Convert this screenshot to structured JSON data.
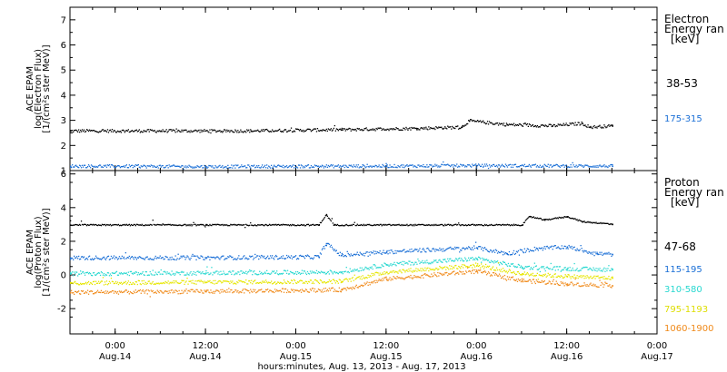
{
  "colors": {
    "frame": "#000000",
    "electron": [
      "#000000",
      "#1a6fd6"
    ],
    "proton": [
      "#000000",
      "#1a6fd6",
      "#28d8d0",
      "#e6e600",
      "#f08a1a"
    ]
  },
  "time_axis": {
    "xlabel": "hours:minutes, Aug. 13, 2013 - Aug. 17, 2013",
    "range": [
      "2013-08-13T18:00",
      "2013-08-17T00:00"
    ],
    "ticks": [
      {
        "t": "2013-08-14T00:00",
        "time": "0:00",
        "date": "Aug.14"
      },
      {
        "t": "2013-08-14T12:00",
        "time": "12:00",
        "date": "Aug.14"
      },
      {
        "t": "2013-08-15T00:00",
        "time": "0:00",
        "date": "Aug.15"
      },
      {
        "t": "2013-08-15T12:00",
        "time": "12:00",
        "date": "Aug.15"
      },
      {
        "t": "2013-08-16T00:00",
        "time": "0:00",
        "date": "Aug.16"
      },
      {
        "t": "2013-08-16T12:00",
        "time": "12:00",
        "date": "Aug.16"
      },
      {
        "t": "2013-08-17T00:00",
        "time": "0:00",
        "date": "Aug.17"
      }
    ]
  },
  "chart_data": [
    {
      "type": "scatter",
      "ylabel_lines": [
        "ACE EPAM",
        "log(Electron Flux)",
        "[1/(cm²s ster MeV)]"
      ],
      "ylim": [
        1,
        7.5
      ],
      "yticks": [
        1,
        2,
        3,
        4,
        5,
        6,
        7
      ],
      "legend": {
        "title_lines": [
          "Electron",
          "Energy ran",
          "[keV]"
        ]
      },
      "series": [
        {
          "name": "38-53",
          "points": [
            [
              "2013-08-13T18:00",
              2.6
            ],
            [
              "2013-08-14T06:00",
              2.6
            ],
            [
              "2013-08-14T18:00",
              2.6
            ],
            [
              "2013-08-15T06:00",
              2.65
            ],
            [
              "2013-08-15T16:00",
              2.7
            ],
            [
              "2013-08-15T22:00",
              2.75
            ],
            [
              "2013-08-15T23:00",
              3.0
            ],
            [
              "2013-08-16T04:00",
              2.85
            ],
            [
              "2013-08-16T10:00",
              2.8
            ],
            [
              "2013-08-16T14:00",
              2.9
            ],
            [
              "2013-08-16T15:00",
              2.75
            ],
            [
              "2013-08-16T18:00",
              2.8
            ]
          ]
        },
        {
          "name": "175-315",
          "points": [
            [
              "2013-08-13T18:00",
              1.2
            ],
            [
              "2013-08-14T12:00",
              1.18
            ],
            [
              "2013-08-15T12:00",
              1.2
            ],
            [
              "2013-08-16T00:00",
              1.22
            ],
            [
              "2013-08-16T18:00",
              1.2
            ]
          ]
        }
      ]
    },
    {
      "type": "scatter",
      "ylabel_lines": [
        "ACE EPAM",
        "log(Proton Flux)",
        "[1/(cm²s ster MeV)]"
      ],
      "ylim": [
        -3.5,
        6.2
      ],
      "yticks": [
        -2,
        0,
        2,
        4,
        6
      ],
      "legend": {
        "title_lines": [
          "Proton",
          "Energy ran",
          "[keV]"
        ]
      },
      "series": [
        {
          "name": "47-68",
          "points": [
            [
              "2013-08-13T18:00",
              3.0
            ],
            [
              "2013-08-14T12:00",
              3.0
            ],
            [
              "2013-08-15T03:00",
              3.0
            ],
            [
              "2013-08-15T04:00",
              3.6
            ],
            [
              "2013-08-15T05:00",
              3.0
            ],
            [
              "2013-08-16T06:00",
              3.0
            ],
            [
              "2013-08-16T07:00",
              3.5
            ],
            [
              "2013-08-16T09:00",
              3.3
            ],
            [
              "2013-08-16T12:00",
              3.5
            ],
            [
              "2013-08-16T14:00",
              3.2
            ],
            [
              "2013-08-16T18:00",
              3.05
            ]
          ]
        },
        {
          "name": "115-195",
          "points": [
            [
              "2013-08-13T18:00",
              1.05
            ],
            [
              "2013-08-14T12:00",
              1.05
            ],
            [
              "2013-08-15T03:00",
              1.1
            ],
            [
              "2013-08-15T04:00",
              1.9
            ],
            [
              "2013-08-15T06:00",
              1.2
            ],
            [
              "2013-08-15T12:00",
              1.4
            ],
            [
              "2013-08-16T00:00",
              1.65
            ],
            [
              "2013-08-16T04:00",
              1.3
            ],
            [
              "2013-08-16T08:00",
              1.6
            ],
            [
              "2013-08-16T12:00",
              1.7
            ],
            [
              "2013-08-16T16:00",
              1.3
            ],
            [
              "2013-08-16T18:00",
              1.25
            ]
          ]
        },
        {
          "name": "310-580",
          "points": [
            [
              "2013-08-13T18:00",
              0.1
            ],
            [
              "2013-08-14T12:00",
              0.15
            ],
            [
              "2013-08-15T06:00",
              0.2
            ],
            [
              "2013-08-15T12:00",
              0.65
            ],
            [
              "2013-08-16T00:00",
              1.0
            ],
            [
              "2013-08-16T06:00",
              0.5
            ],
            [
              "2013-08-16T12:00",
              0.4
            ],
            [
              "2013-08-16T18:00",
              0.35
            ]
          ]
        },
        {
          "name": "795-1193",
          "points": [
            [
              "2013-08-13T18:00",
              -0.45
            ],
            [
              "2013-08-14T12:00",
              -0.4
            ],
            [
              "2013-08-15T06:00",
              -0.35
            ],
            [
              "2013-08-15T12:00",
              0.2
            ],
            [
              "2013-08-16T00:00",
              0.6
            ],
            [
              "2013-08-16T06:00",
              0.1
            ],
            [
              "2013-08-16T12:00",
              -0.05
            ],
            [
              "2013-08-16T18:00",
              -0.15
            ]
          ]
        },
        {
          "name": "1060-1900",
          "points": [
            [
              "2013-08-13T18:00",
              -1.0
            ],
            [
              "2013-08-14T12:00",
              -0.95
            ],
            [
              "2013-08-15T06:00",
              -0.85
            ],
            [
              "2013-08-15T12:00",
              -0.2
            ],
            [
              "2013-08-16T00:00",
              0.25
            ],
            [
              "2013-08-16T06:00",
              -0.3
            ],
            [
              "2013-08-16T12:00",
              -0.5
            ],
            [
              "2013-08-16T18:00",
              -0.6
            ]
          ]
        }
      ]
    }
  ]
}
